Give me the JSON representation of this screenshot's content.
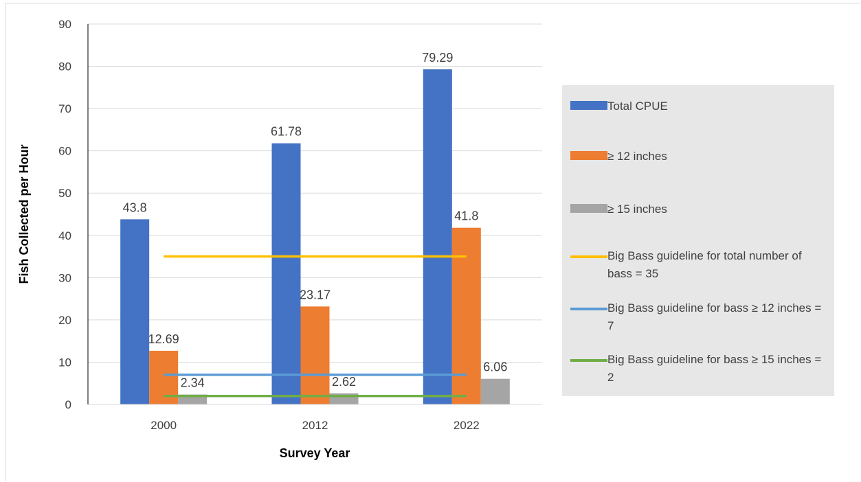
{
  "chart_data": {
    "type": "bar",
    "categories": [
      "2000",
      "2012",
      "2022"
    ],
    "series": [
      {
        "name": "Total CPUE",
        "values": [
          43.8,
          61.78,
          79.29
        ],
        "color": "#4472c4",
        "labels": [
          "43.8",
          "61.78",
          "79.29"
        ]
      },
      {
        "name": "≥ 12 inches",
        "values": [
          12.69,
          23.17,
          41.8
        ],
        "color": "#ed7d31",
        "labels": [
          "12.69",
          "23.17",
          "41.8"
        ]
      },
      {
        "name": "≥ 15 inches",
        "values": [
          2.34,
          2.62,
          6.06
        ],
        "color": "#a5a5a5",
        "labels": [
          "2.34",
          "2.62",
          "6.06"
        ]
      }
    ],
    "reference_lines": [
      {
        "name": "Big Bass guideline for total number of bass = 35",
        "value": 35,
        "color": "#ffc000"
      },
      {
        "name": "Big Bass guideline for bass ≥ 12 inches = 7",
        "value": 7,
        "color": "#5b9bd5"
      },
      {
        "name": "Big Bass guideline for bass ≥ 15 inches = 2",
        "value": 2,
        "color": "#70ad47"
      }
    ],
    "xlabel": "Survey Year",
    "ylabel": "Fish Collected per Hour",
    "ylim": [
      0,
      90
    ],
    "yticks": [
      0,
      10,
      20,
      30,
      40,
      50,
      60,
      70,
      80,
      90
    ],
    "grid": true,
    "legend_position": "right"
  }
}
